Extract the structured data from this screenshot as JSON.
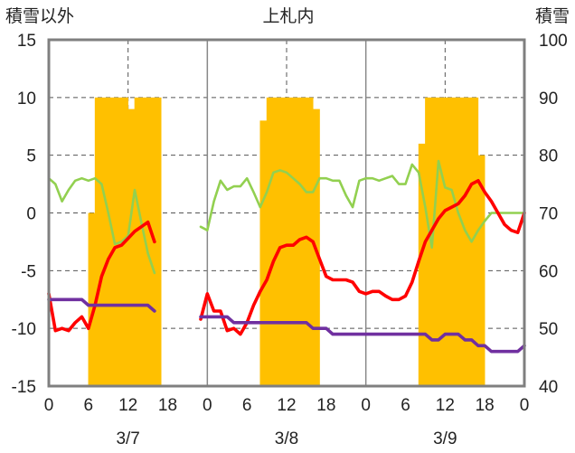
{
  "chart_data": {
    "type": "combo",
    "title": "上札内",
    "ylabel_left": "積雪以外",
    "ylabel_right": "積雪",
    "ylim_left": [
      -15,
      15
    ],
    "yticks_left": [
      15,
      10,
      5,
      0,
      -5,
      -10,
      -15
    ],
    "ylim_right": [
      40,
      100
    ],
    "yticks_right": [
      100,
      90,
      80,
      70,
      60,
      50,
      40
    ],
    "xlim_hours": [
      0,
      72
    ],
    "xtick_hours": [
      0,
      3,
      6,
      9,
      12,
      15,
      18,
      21,
      24,
      27,
      30,
      33,
      36,
      39,
      42,
      45,
      48,
      51,
      54,
      57,
      60,
      63,
      66,
      69,
      72
    ],
    "xtick_labels": [
      "0",
      "",
      "6",
      "",
      "12",
      "",
      "18",
      "",
      "0",
      "",
      "6",
      "",
      "12",
      "",
      "18",
      "",
      "0",
      "",
      "6",
      "",
      "12",
      "",
      "18",
      "",
      "0"
    ],
    "day_labels": [
      {
        "label": "3/7",
        "hour": 12
      },
      {
        "label": "3/8",
        "hour": 36
      },
      {
        "label": "3/9",
        "hour": 60
      }
    ],
    "day_divider_hours": [
      24,
      48
    ],
    "vertical_gridline_hours": [
      12,
      36,
      60
    ],
    "grid": true,
    "snow_depth_bars": {
      "name": "積雪",
      "axis": "right",
      "color": "#ffc000",
      "hours": [
        6.5,
        7.5,
        8.5,
        9.5,
        10.5,
        11.5,
        12.5,
        13.5,
        14.5,
        15.5,
        16.5,
        32.5,
        33.5,
        34.5,
        35.5,
        36.5,
        37.5,
        38.5,
        39.5,
        40.5,
        56.5,
        57.5,
        58.5,
        59.5,
        60.5,
        61.5,
        62.5,
        63.5,
        64.5,
        65.5
      ],
      "values": [
        70,
        90,
        90,
        90,
        90,
        90,
        88,
        90,
        90,
        90,
        90,
        86,
        90,
        90,
        90,
        90,
        90,
        90,
        90,
        88,
        82,
        90,
        90,
        90,
        90,
        90,
        90,
        90,
        90,
        80
      ]
    },
    "series": [
      {
        "name": "緑",
        "axis": "left",
        "color": "#92d050",
        "segments": [
          {
            "x": [
              0,
              1,
              2,
              3,
              4,
              5,
              6,
              7,
              8,
              9,
              10,
              11,
              12,
              13,
              14,
              15,
              16
            ],
            "y": [
              3,
              2.5,
              1,
              2,
              2.8,
              3,
              2.8,
              3,
              2.5,
              0,
              -2.7,
              -2.5,
              -2,
              2,
              -0.8,
              -3.5,
              -5.2
            ]
          },
          {
            "x": [
              23,
              24,
              25,
              26,
              27,
              28,
              29,
              30,
              31,
              32,
              33,
              34,
              35,
              36,
              37,
              38,
              39,
              40,
              41,
              42,
              43,
              44,
              45,
              46,
              47,
              48,
              49,
              50,
              51,
              52,
              53,
              54,
              55,
              56,
              57,
              58,
              59,
              60,
              61,
              62,
              63,
              64,
              65,
              66,
              67,
              68,
              69,
              70,
              71,
              72
            ],
            "y": [
              -1.2,
              -1.5,
              1,
              2.8,
              2,
              2.3,
              2.3,
              3,
              1.8,
              0.5,
              1.8,
              3.5,
              3.7,
              3.5,
              3,
              2.5,
              1.8,
              1.8,
              3,
              3,
              2.8,
              2.8,
              1.5,
              0.5,
              2.8,
              3,
              3,
              2.8,
              3,
              3.2,
              2.5,
              2.5,
              4.2,
              3.5,
              0.5,
              -3,
              4.5,
              2.2,
              2,
              0,
              -1.5,
              -2.5,
              -1.5,
              -0.7,
              0,
              0,
              0,
              0,
              0,
              0
            ]
          }
        ]
      },
      {
        "name": "赤",
        "axis": "left",
        "color": "#ff0000",
        "segments": [
          {
            "x": [
              0,
              1,
              2,
              3,
              4,
              5,
              6,
              7,
              8,
              9,
              10,
              11,
              12,
              13,
              14,
              15,
              16
            ],
            "y": [
              -7,
              -10.2,
              -10,
              -10.2,
              -9.5,
              -9,
              -10,
              -8,
              -5.5,
              -4,
              -3,
              -2.8,
              -2.2,
              -1.6,
              -1.2,
              -0.8,
              -2.5
            ]
          },
          {
            "x": [
              23,
              24,
              25,
              26,
              27,
              28,
              29,
              30,
              31,
              32,
              33,
              34,
              35,
              36,
              37,
              38,
              39,
              40,
              41,
              42,
              43,
              44,
              45,
              46,
              47,
              48,
              49,
              50,
              51,
              52,
              53,
              54,
              55,
              56,
              57,
              58,
              59,
              60,
              61,
              62,
              63,
              64,
              65,
              66,
              67,
              68,
              69,
              70,
              71,
              72
            ],
            "y": [
              -9.2,
              -7,
              -8.5,
              -8.5,
              -10.2,
              -10,
              -10.5,
              -9.5,
              -8,
              -6.8,
              -5.8,
              -4.2,
              -3,
              -2.8,
              -2.8,
              -2.3,
              -2.1,
              -2.5,
              -4,
              -5.5,
              -5.8,
              -5.8,
              -5.8,
              -6,
              -6.8,
              -7,
              -6.8,
              -6.8,
              -7.2,
              -7.5,
              -7.5,
              -7.2,
              -6,
              -4.2,
              -2.5,
              -1.5,
              -0.5,
              0.2,
              0.5,
              0.8,
              1.5,
              2.5,
              2.8,
              1.8,
              1,
              0,
              -1,
              -1.5,
              -1.7,
              0
            ]
          }
        ]
      },
      {
        "name": "紫",
        "axis": "left",
        "color": "#7030a0",
        "segments": [
          {
            "x": [
              0,
              1,
              2,
              3,
              4,
              5,
              6,
              7,
              8,
              9,
              10,
              11,
              12,
              13,
              14,
              15,
              16
            ],
            "y": [
              -7.5,
              -7.5,
              -7.5,
              -7.5,
              -7.5,
              -7.5,
              -8,
              -8,
              -8,
              -8,
              -8,
              -8,
              -8,
              -8,
              -8,
              -8,
              -8.5
            ]
          },
          {
            "x": [
              23,
              24,
              25,
              26,
              27,
              28,
              29,
              30,
              31,
              32,
              33,
              34,
              35,
              36,
              37,
              38,
              39,
              40,
              41,
              42,
              43,
              44,
              45,
              46,
              47,
              48,
              49,
              50,
              51,
              52,
              53,
              54,
              55,
              56,
              57,
              58,
              59,
              60,
              61,
              62,
              63,
              64,
              65,
              66,
              67,
              68,
              69,
              70,
              71,
              72
            ],
            "y": [
              -9,
              -9,
              -9,
              -9,
              -9,
              -9.5,
              -9.5,
              -9.5,
              -9.5,
              -9.5,
              -9.5,
              -9.5,
              -9.5,
              -9.5,
              -9.5,
              -9.5,
              -9.5,
              -10,
              -10,
              -10,
              -10.5,
              -10.5,
              -10.5,
              -10.5,
              -10.5,
              -10.5,
              -10.5,
              -10.5,
              -10.5,
              -10.5,
              -10.5,
              -10.5,
              -10.5,
              -10.5,
              -10.5,
              -11,
              -11,
              -10.5,
              -10.5,
              -10.5,
              -11,
              -11,
              -11.5,
              -11.5,
              -12,
              -12,
              -12,
              -12,
              -12,
              -11.5
            ]
          }
        ]
      }
    ]
  }
}
